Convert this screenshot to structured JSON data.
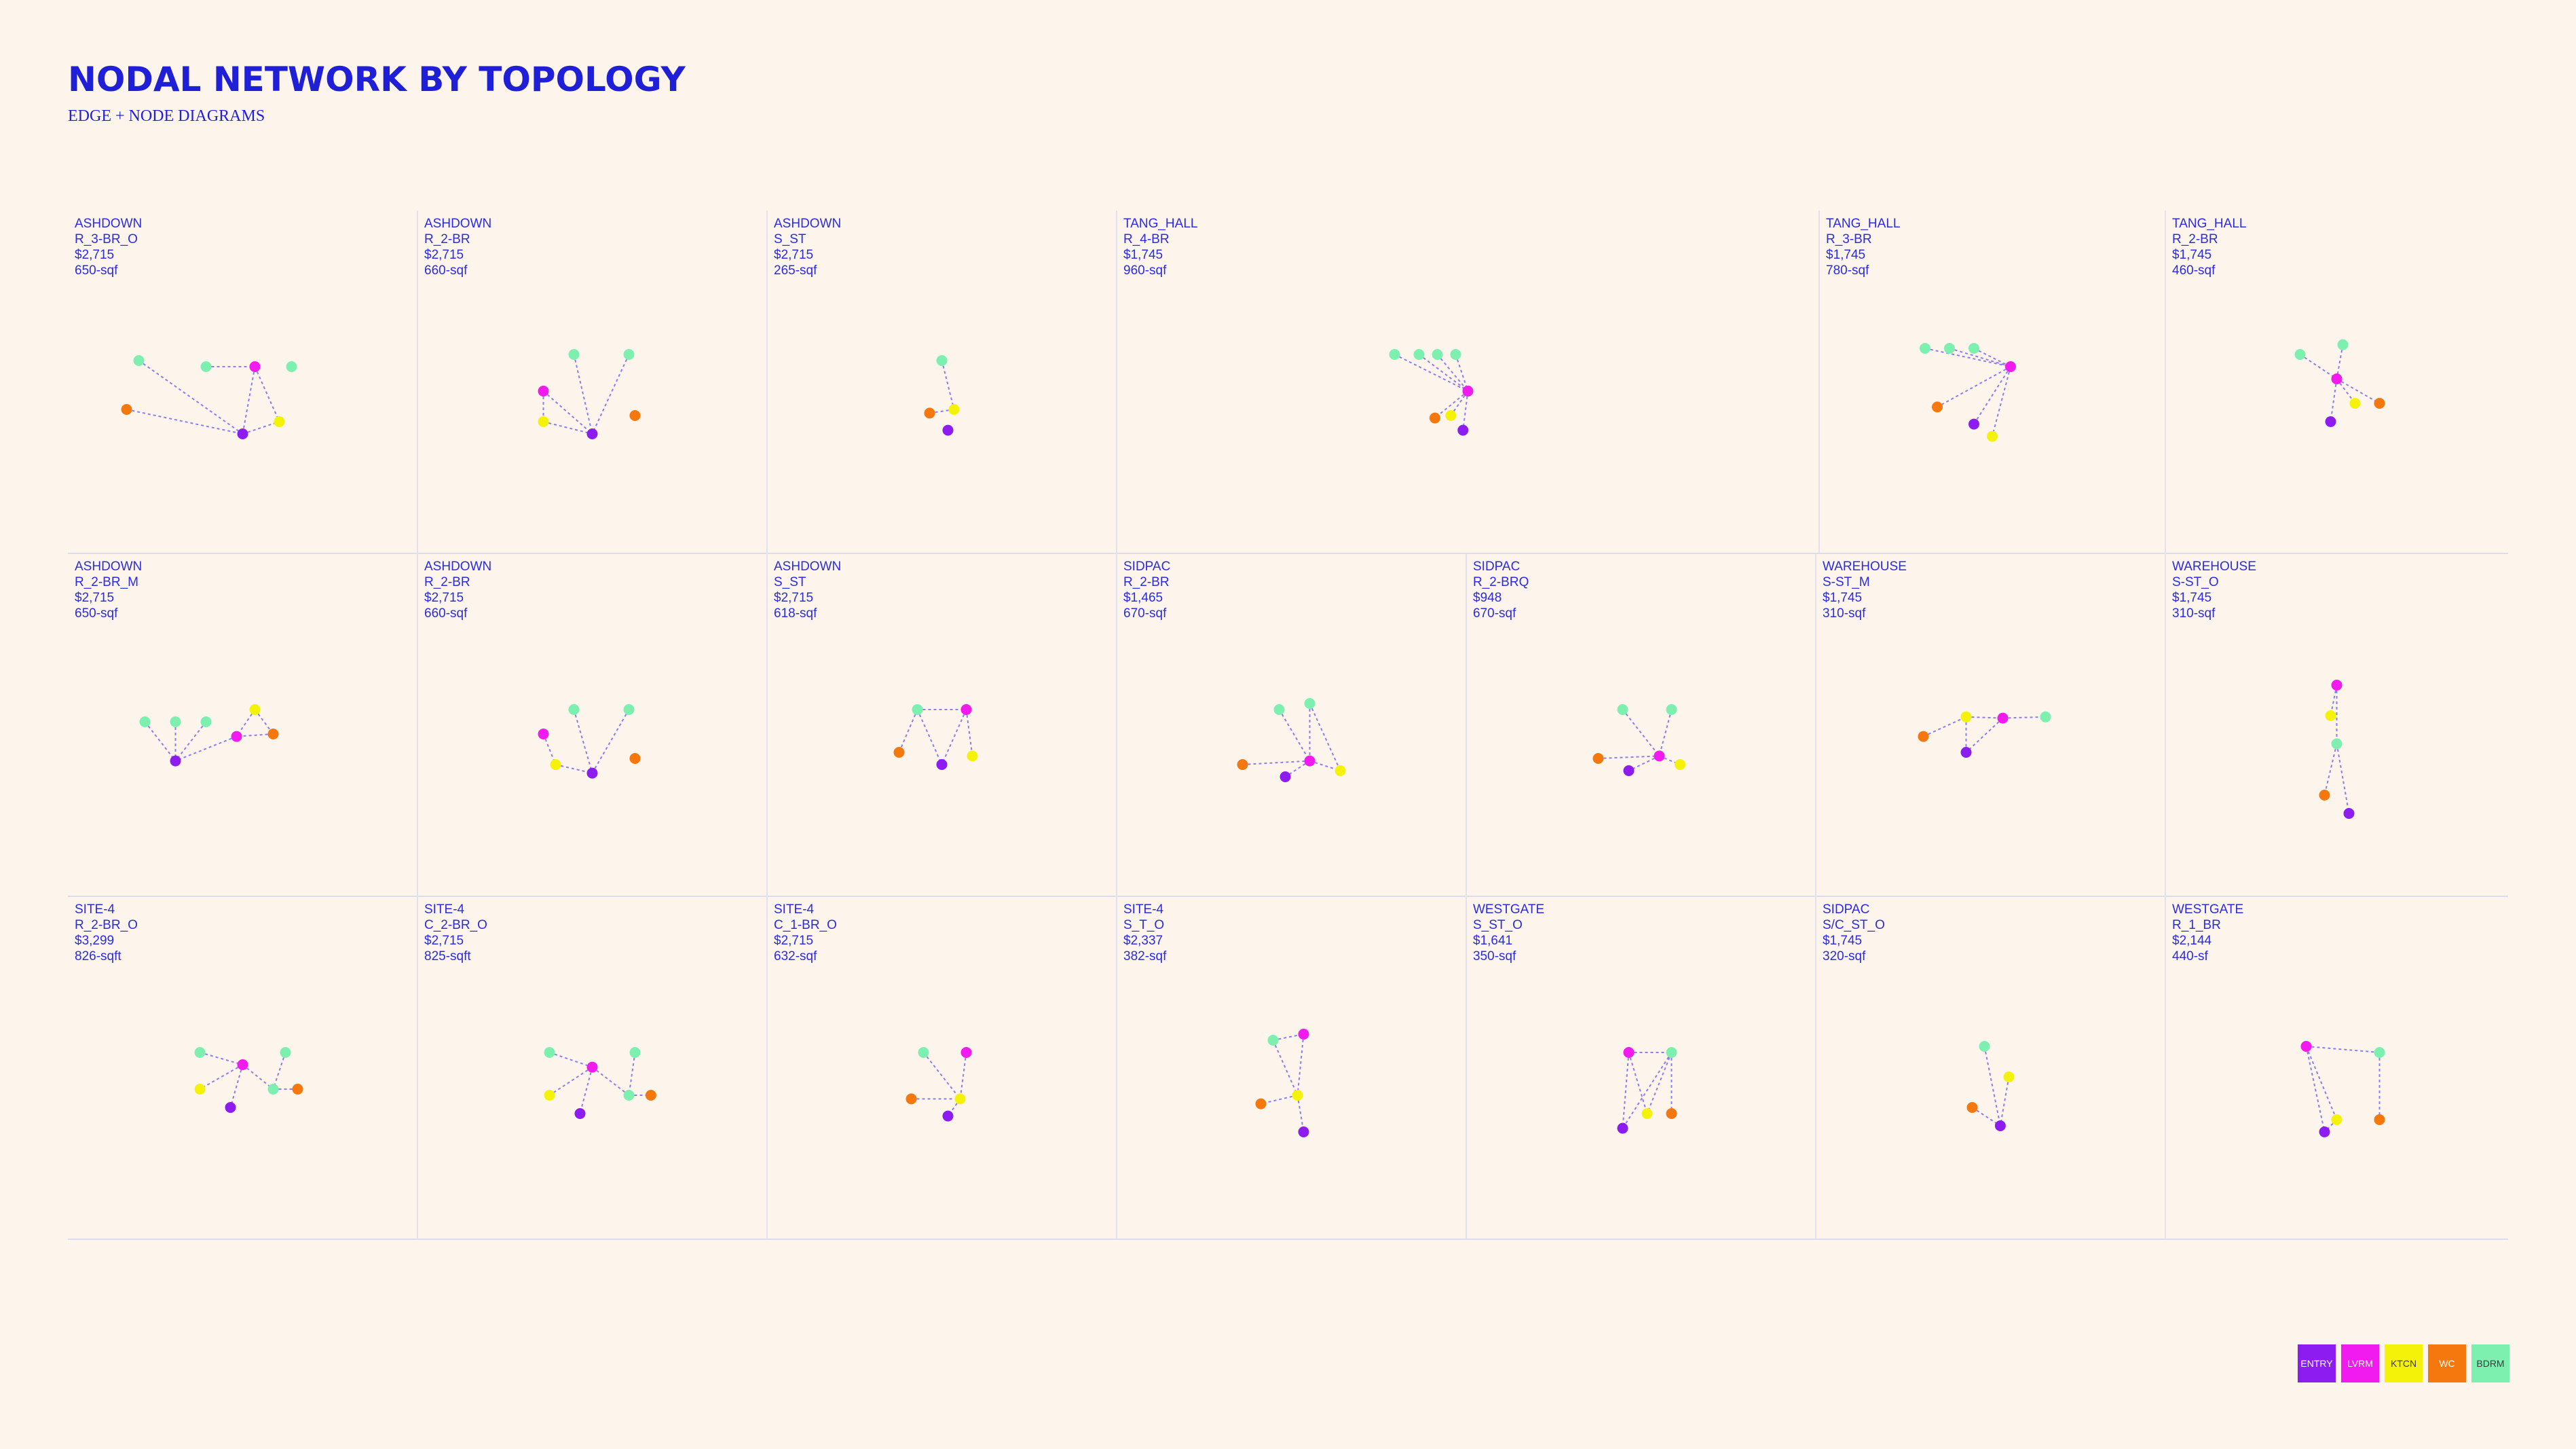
{
  "header": {
    "title": "NODAL NETWORK BY TOPOLOGY",
    "subtitle": "EDGE + NODE DIAGRAMS"
  },
  "node_types": {
    "ENTRY": "#8c1cf0",
    "LVRM": "#f21bef",
    "KTCN": "#f5f20a",
    "WC": "#f5780f",
    "BDRM": "#7df0b0"
  },
  "legend": [
    {
      "label": "ENTRY",
      "color": "#8c1cf0"
    },
    {
      "label": "LVRM",
      "color": "#f21bef"
    },
    {
      "label": "KTCN",
      "color": "#f5f20a"
    },
    {
      "label": "WC",
      "color": "#f5780f"
    },
    {
      "label": "BDRM",
      "color": "#7df0b0"
    }
  ],
  "rows": [
    [
      {
        "site": "ASHDOWN",
        "unit": "R_3-BR_O",
        "price": "$2,715",
        "area": "650-sqf",
        "nodes": [
          [
            "BDRM",
            -0.85,
            -0.05
          ],
          [
            "BDRM",
            -0.3,
            0.0
          ],
          [
            "LVRM",
            0.1,
            0.0
          ],
          [
            "BDRM",
            0.4,
            0.0
          ],
          [
            "WC",
            -0.95,
            0.35
          ],
          [
            "ENTRY",
            0.0,
            0.55
          ],
          [
            "KTCN",
            0.3,
            0.45
          ]
        ],
        "edges": [
          [
            0,
            5
          ],
          [
            4,
            5
          ],
          [
            1,
            2
          ],
          [
            2,
            5
          ],
          [
            2,
            6
          ],
          [
            5,
            6
          ]
        ]
      },
      {
        "site": "ASHDOWN",
        "unit": "R_2-BR",
        "price": "$2,715",
        "area": "660-sqf",
        "nodes": [
          [
            "BDRM",
            -0.15,
            -0.1
          ],
          [
            "BDRM",
            0.3,
            -0.1
          ],
          [
            "LVRM",
            -0.4,
            0.2
          ],
          [
            "KTCN",
            -0.4,
            0.45
          ],
          [
            "ENTRY",
            0.0,
            0.55
          ],
          [
            "WC",
            0.35,
            0.4
          ]
        ],
        "edges": [
          [
            0,
            4
          ],
          [
            1,
            4
          ],
          [
            2,
            4
          ],
          [
            3,
            4
          ],
          [
            2,
            3
          ]
        ]
      },
      {
        "site": "ASHDOWN",
        "unit": "S_ST",
        "price": "$2,715",
        "area": "265-sqf",
        "nodes": [
          [
            "BDRM",
            0.0,
            -0.05
          ],
          [
            "KTCN",
            0.1,
            0.35
          ],
          [
            "WC",
            -0.1,
            0.38
          ],
          [
            "ENTRY",
            0.05,
            0.52
          ]
        ],
        "edges": [
          [
            0,
            1
          ],
          [
            1,
            2
          ]
        ]
      },
      {
        "site": "TANG_HALL",
        "unit": "R_4-BR",
        "price": "$1,745",
        "area": "960-sqf",
        "nodes": [
          [
            "BDRM",
            -0.6,
            -0.1
          ],
          [
            "BDRM",
            -0.4,
            -0.1
          ],
          [
            "BDRM",
            -0.25,
            -0.1
          ],
          [
            "BDRM",
            -0.1,
            -0.1
          ],
          [
            "LVRM",
            0.0,
            0.2
          ],
          [
            "WC",
            -0.27,
            0.42
          ],
          [
            "KTCN",
            -0.14,
            0.4
          ],
          [
            "ENTRY",
            -0.04,
            0.52
          ]
        ],
        "edges": [
          [
            0,
            4
          ],
          [
            1,
            4
          ],
          [
            2,
            4
          ],
          [
            3,
            4
          ],
          [
            4,
            5
          ],
          [
            4,
            6
          ],
          [
            4,
            7
          ]
        ]
      },
      {
        "site": "TANG_HALL",
        "unit": "R_3-BR",
        "price": "$1,745",
        "area": "780-sqf",
        "nodes": [
          [
            "BDRM",
            -0.55,
            -0.15
          ],
          [
            "BDRM",
            -0.35,
            -0.15
          ],
          [
            "BDRM",
            -0.15,
            -0.15
          ],
          [
            "LVRM",
            0.15,
            0.0
          ],
          [
            "WC",
            -0.45,
            0.33
          ],
          [
            "ENTRY",
            -0.15,
            0.47
          ],
          [
            "KTCN",
            0.0,
            0.57
          ]
        ],
        "edges": [
          [
            0,
            3
          ],
          [
            1,
            3
          ],
          [
            2,
            3
          ],
          [
            3,
            4
          ],
          [
            3,
            5
          ],
          [
            3,
            6
          ]
        ]
      },
      {
        "site": "TANG_HALL",
        "unit": "R_2-BR",
        "price": "$1,745",
        "area": "460-sqf",
        "nodes": [
          [
            "BDRM",
            -0.3,
            -0.1
          ],
          [
            "BDRM",
            0.05,
            -0.18
          ],
          [
            "LVRM",
            0.0,
            0.1
          ],
          [
            "KTCN",
            0.15,
            0.3
          ],
          [
            "WC",
            0.35,
            0.3
          ],
          [
            "ENTRY",
            -0.05,
            0.45
          ]
        ],
        "edges": [
          [
            0,
            2
          ],
          [
            1,
            2
          ],
          [
            2,
            3
          ],
          [
            2,
            4
          ],
          [
            2,
            5
          ]
        ]
      }
    ],
    [
      {
        "site": "ASHDOWN",
        "unit": "R_2-BR_M",
        "price": "$2,715",
        "area": "650-sqf",
        "nodes": [
          [
            "BDRM",
            -0.8,
            0.1
          ],
          [
            "BDRM",
            -0.55,
            0.1
          ],
          [
            "BDRM",
            -0.3,
            0.1
          ],
          [
            "KTCN",
            0.1,
            0.0
          ],
          [
            "WC",
            0.25,
            0.2
          ],
          [
            "LVRM",
            -0.05,
            0.22
          ],
          [
            "ENTRY",
            -0.55,
            0.42
          ]
        ],
        "edges": [
          [
            0,
            6
          ],
          [
            1,
            6
          ],
          [
            2,
            6
          ],
          [
            5,
            6
          ],
          [
            3,
            5
          ],
          [
            4,
            5
          ],
          [
            3,
            4
          ]
        ]
      },
      {
        "site": "ASHDOWN",
        "unit": "R_2-BR",
        "price": "$2,715",
        "area": "660-sqf",
        "nodes": [
          [
            "BDRM",
            -0.15,
            0.0
          ],
          [
            "BDRM",
            0.3,
            0.0
          ],
          [
            "LVRM",
            -0.4,
            0.2
          ],
          [
            "KTCN",
            -0.3,
            0.45
          ],
          [
            "ENTRY",
            0.0,
            0.52
          ],
          [
            "WC",
            0.35,
            0.4
          ]
        ],
        "edges": [
          [
            0,
            4
          ],
          [
            1,
            4
          ],
          [
            3,
            4
          ],
          [
            2,
            3
          ]
        ]
      },
      {
        "site": "ASHDOWN",
        "unit": "S_ST",
        "price": "$2,715",
        "area": "618-sqf",
        "nodes": [
          [
            "BDRM",
            -0.2,
            0.0
          ],
          [
            "LVRM",
            0.2,
            0.0
          ],
          [
            "WC",
            -0.35,
            0.35
          ],
          [
            "ENTRY",
            0.0,
            0.45
          ],
          [
            "KTCN",
            0.25,
            0.38
          ]
        ],
        "edges": [
          [
            0,
            1
          ],
          [
            0,
            2
          ],
          [
            0,
            3
          ],
          [
            1,
            3
          ],
          [
            1,
            4
          ]
        ]
      },
      {
        "site": "SIDPAC",
        "unit": "R_2-BR",
        "price": "$1,465",
        "area": "670-sqf",
        "nodes": [
          [
            "BDRM",
            -0.1,
            0.0
          ],
          [
            "BDRM",
            0.15,
            -0.05
          ],
          [
            "WC",
            -0.4,
            0.45
          ],
          [
            "LVRM",
            0.15,
            0.42
          ],
          [
            "ENTRY",
            -0.05,
            0.55
          ],
          [
            "KTCN",
            0.4,
            0.5
          ]
        ],
        "edges": [
          [
            0,
            3
          ],
          [
            1,
            3
          ],
          [
            1,
            5
          ],
          [
            2,
            3
          ],
          [
            3,
            4
          ],
          [
            3,
            5
          ]
        ]
      },
      {
        "site": "SIDPAC",
        "unit": "R_2-BRQ",
        "price": "$948",
        "area": "670-sqf",
        "nodes": [
          [
            "BDRM",
            -0.15,
            0.0
          ],
          [
            "BDRM",
            0.25,
            0.0
          ],
          [
            "WC",
            -0.35,
            0.4
          ],
          [
            "LVRM",
            0.15,
            0.38
          ],
          [
            "ENTRY",
            -0.1,
            0.5
          ],
          [
            "KTCN",
            0.32,
            0.45
          ]
        ],
        "edges": [
          [
            0,
            3
          ],
          [
            1,
            3
          ],
          [
            2,
            3
          ],
          [
            3,
            4
          ],
          [
            3,
            5
          ]
        ]
      },
      {
        "site": "WAREHOUSE",
        "unit": "S-ST_M",
        "price": "$1,745",
        "area": "310-sqf",
        "nodes": [
          [
            "WC",
            -0.55,
            0.22
          ],
          [
            "KTCN",
            -0.2,
            0.06
          ],
          [
            "LVRM",
            0.1,
            0.07
          ],
          [
            "BDRM",
            0.45,
            0.06
          ],
          [
            "ENTRY",
            -0.2,
            0.35
          ]
        ],
        "edges": [
          [
            0,
            1
          ],
          [
            1,
            2
          ],
          [
            2,
            3
          ],
          [
            1,
            4
          ],
          [
            2,
            4
          ]
        ]
      },
      {
        "site": "WAREHOUSE",
        "unit": "S-ST_O",
        "price": "$1,745",
        "area": "310-sqf",
        "nodes": [
          [
            "LVRM",
            0.0,
            -0.2
          ],
          [
            "KTCN",
            -0.05,
            0.05
          ],
          [
            "BDRM",
            0.0,
            0.28
          ],
          [
            "WC",
            -0.1,
            0.7
          ],
          [
            "ENTRY",
            0.1,
            0.85
          ]
        ],
        "edges": [
          [
            0,
            1
          ],
          [
            0,
            2
          ],
          [
            2,
            3
          ],
          [
            2,
            4
          ]
        ]
      }
    ],
    [
      {
        "site": "SITE-4",
        "unit": "R_2-BR_O",
        "price": "$3,299",
        "area": "826-sqft",
        "nodes": [
          [
            "BDRM",
            -0.35,
            0.0
          ],
          [
            "LVRM",
            0.0,
            0.1
          ],
          [
            "BDRM",
            0.35,
            0.0
          ],
          [
            "KTCN",
            -0.35,
            0.3
          ],
          [
            "BDRM",
            0.25,
            0.3
          ],
          [
            "WC",
            0.45,
            0.3
          ],
          [
            "ENTRY",
            -0.1,
            0.45
          ]
        ],
        "edges": [
          [
            0,
            1
          ],
          [
            1,
            3
          ],
          [
            1,
            4
          ],
          [
            1,
            6
          ],
          [
            2,
            4
          ],
          [
            4,
            5
          ]
        ]
      },
      {
        "site": "SITE-4",
        "unit": "C_2-BR_O",
        "price": "$2,715",
        "area": "825-sqft",
        "nodes": [
          [
            "BDRM",
            -0.35,
            0.0
          ],
          [
            "LVRM",
            0.0,
            0.12
          ],
          [
            "BDRM",
            0.35,
            0.0
          ],
          [
            "KTCN",
            -0.35,
            0.35
          ],
          [
            "BDRM",
            0.3,
            0.35
          ],
          [
            "WC",
            0.48,
            0.35
          ],
          [
            "ENTRY",
            -0.1,
            0.5
          ]
        ],
        "edges": [
          [
            0,
            1
          ],
          [
            1,
            3
          ],
          [
            1,
            4
          ],
          [
            1,
            6
          ],
          [
            2,
            4
          ],
          [
            4,
            5
          ]
        ]
      },
      {
        "site": "SITE-4",
        "unit": "C_1-BR_O",
        "price": "$2,715",
        "area": "632-sqf",
        "nodes": [
          [
            "BDRM",
            -0.15,
            0.0
          ],
          [
            "LVRM",
            0.2,
            0.0
          ],
          [
            "WC",
            -0.25,
            0.38
          ],
          [
            "KTCN",
            0.15,
            0.38
          ],
          [
            "ENTRY",
            0.05,
            0.52
          ]
        ],
        "edges": [
          [
            0,
            3
          ],
          [
            1,
            3
          ],
          [
            2,
            3
          ],
          [
            3,
            4
          ]
        ]
      },
      {
        "site": "SITE-4",
        "unit": "S_T_O",
        "price": "$2,337",
        "area": "382-sqf",
        "nodes": [
          [
            "BDRM",
            -0.15,
            -0.1
          ],
          [
            "LVRM",
            0.1,
            -0.15
          ],
          [
            "KTCN",
            0.05,
            0.35
          ],
          [
            "WC",
            -0.25,
            0.42
          ],
          [
            "ENTRY",
            0.1,
            0.65
          ]
        ],
        "edges": [
          [
            0,
            1
          ],
          [
            0,
            2
          ],
          [
            1,
            2
          ],
          [
            2,
            3
          ],
          [
            2,
            4
          ]
        ]
      },
      {
        "site": "WESTGATE",
        "unit": "S_ST_O",
        "price": "$1,641",
        "area": "350-sqf",
        "nodes": [
          [
            "LVRM",
            -0.1,
            0.0
          ],
          [
            "BDRM",
            0.25,
            0.0
          ],
          [
            "KTCN",
            0.05,
            0.5
          ],
          [
            "WC",
            0.25,
            0.5
          ],
          [
            "ENTRY",
            -0.15,
            0.62
          ]
        ],
        "edges": [
          [
            0,
            1
          ],
          [
            0,
            2
          ],
          [
            0,
            4
          ],
          [
            1,
            2
          ],
          [
            1,
            3
          ],
          [
            1,
            4
          ]
        ]
      },
      {
        "site": "SIDPAC",
        "unit": "S/C_ST_O",
        "price": "$1,745",
        "area": "320-sqf",
        "nodes": [
          [
            "BDRM",
            -0.05,
            -0.05
          ],
          [
            "KTCN",
            0.15,
            0.2
          ],
          [
            "WC",
            -0.15,
            0.45
          ],
          [
            "ENTRY",
            0.08,
            0.6
          ]
        ],
        "edges": [
          [
            0,
            3
          ],
          [
            1,
            3
          ],
          [
            2,
            3
          ]
        ]
      },
      {
        "site": "WESTGATE",
        "unit": "R_1_BR",
        "price": "$2,144",
        "area": "440-sf",
        "nodes": [
          [
            "LVRM",
            -0.25,
            -0.05
          ],
          [
            "BDRM",
            0.35,
            0.0
          ],
          [
            "KTCN",
            0.0,
            0.55
          ],
          [
            "WC",
            0.35,
            0.55
          ],
          [
            "ENTRY",
            -0.1,
            0.65
          ]
        ],
        "edges": [
          [
            0,
            1
          ],
          [
            0,
            2
          ],
          [
            0,
            4
          ],
          [
            1,
            3
          ],
          [
            2,
            4
          ]
        ]
      }
    ]
  ]
}
